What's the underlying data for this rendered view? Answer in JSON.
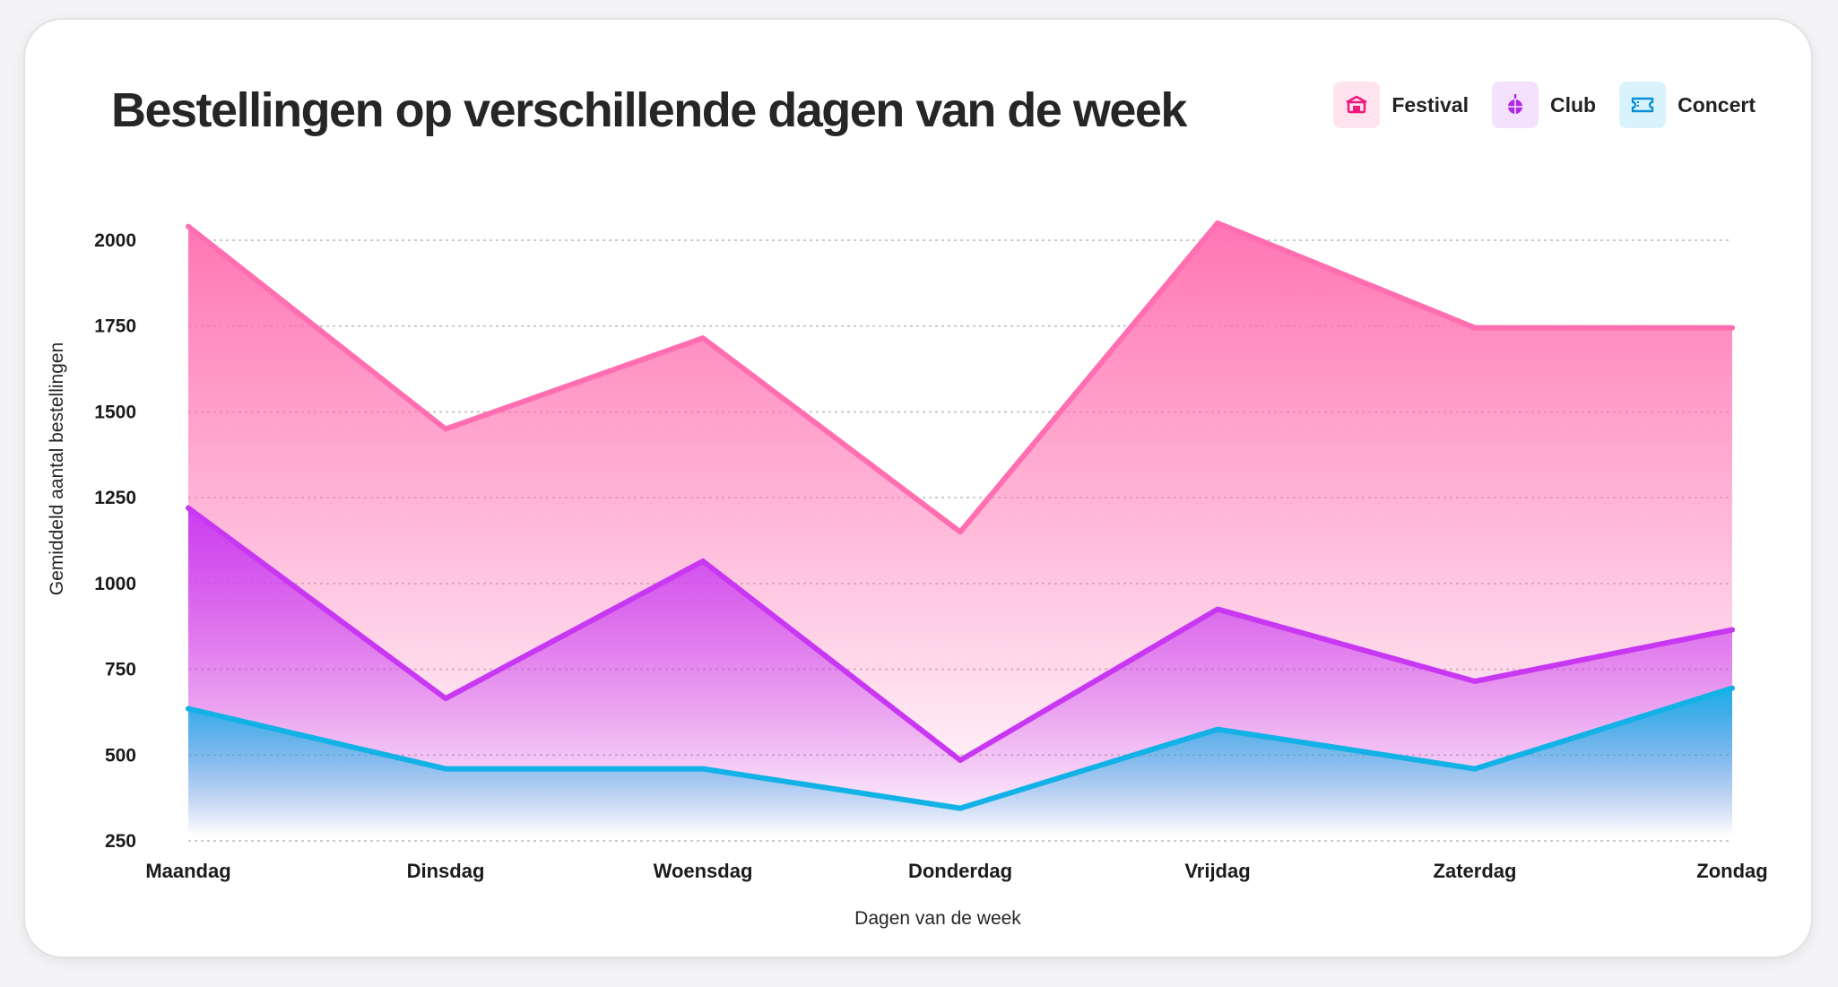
{
  "chart_data": {
    "type": "area",
    "title": "Bestellingen op verschillende dagen van de week",
    "xlabel": "Dagen van de week",
    "ylabel": "Gemiddeld aantal bestellingen",
    "categories": [
      "Maandag",
      "Dinsdag",
      "Woensdag",
      "Donderdag",
      "Vrijdag",
      "Zaterdag",
      "Zondag"
    ],
    "yticks": [
      250,
      500,
      750,
      1000,
      1250,
      1500,
      1750,
      2000
    ],
    "ylim": [
      250,
      2000
    ],
    "grid": true,
    "legend_position": "top-right",
    "series": [
      {
        "name": "Festival",
        "color": "#ff6eb0",
        "icon": "venue-icon",
        "values": [
          2040,
          1450,
          1715,
          1150,
          2050,
          1745,
          1745
        ]
      },
      {
        "name": "Club",
        "color": "#c837f2",
        "icon": "disco-ball-icon",
        "values": [
          1220,
          665,
          1065,
          485,
          925,
          715,
          865
        ]
      },
      {
        "name": "Concert",
        "color": "#12b1e6",
        "icon": "ticket-icon",
        "values": [
          635,
          460,
          460,
          345,
          575,
          460,
          695
        ]
      }
    ]
  }
}
